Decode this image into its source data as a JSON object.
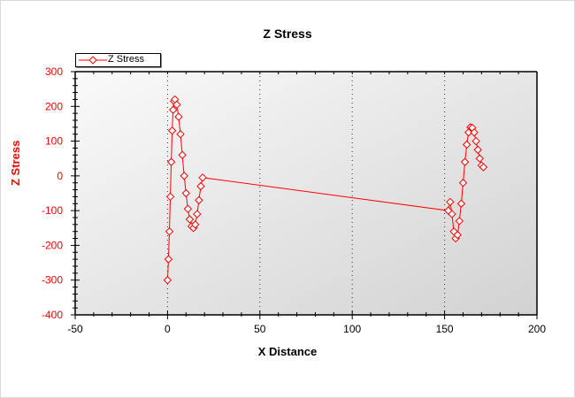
{
  "chart_data": {
    "type": "scatter",
    "title": "Z Stress",
    "xlabel": "X Distance",
    "ylabel": "Z Stress",
    "xlim": [
      -50,
      200
    ],
    "ylim": [
      -400,
      300
    ],
    "xticks": [
      -50,
      0,
      50,
      100,
      150,
      200
    ],
    "yticks": [
      300,
      200,
      100,
      0,
      -100,
      -200,
      -300,
      -400
    ],
    "grid": "vertical dotted lines at x = 0, 50, 100, 150",
    "legend": {
      "position": "top-left above plot",
      "entries": [
        "Z Stress"
      ]
    },
    "series": [
      {
        "name": "Z Stress",
        "color": "#ff0000",
        "marker": "diamond-open",
        "x": [
          0,
          0.5,
          1,
          1.5,
          2,
          2.5,
          3,
          3.5,
          4,
          5,
          6,
          7,
          8,
          9,
          10,
          11,
          12,
          13,
          14,
          15,
          16,
          17,
          18,
          19,
          152,
          153,
          154,
          155,
          156,
          157,
          158,
          159,
          160,
          161,
          162,
          163,
          164,
          165,
          166,
          167,
          168,
          169,
          170,
          171
        ],
        "y": [
          -300,
          -240,
          -160,
          -60,
          40,
          130,
          190,
          215,
          220,
          205,
          170,
          120,
          60,
          0,
          -50,
          -95,
          -125,
          -145,
          -150,
          -140,
          -110,
          -70,
          -30,
          -5,
          -100,
          -75,
          -110,
          -160,
          -180,
          -170,
          -130,
          -80,
          -20,
          40,
          90,
          125,
          140,
          138,
          125,
          100,
          75,
          50,
          30,
          25
        ]
      }
    ]
  },
  "legend": {
    "label": "Z Stress"
  },
  "axes": {
    "x_label": "X Distance",
    "y_label": "Z Stress",
    "x_tick_labels": [
      "-50",
      "0",
      "50",
      "100",
      "150",
      "200"
    ],
    "y_tick_labels": [
      "300",
      "200",
      "100",
      "0",
      "-100",
      "-200",
      "-300",
      "-400"
    ]
  },
  "colors": {
    "series": "#ff0000",
    "y_axis_text": "#ff0000",
    "x_axis_text": "#000000"
  }
}
